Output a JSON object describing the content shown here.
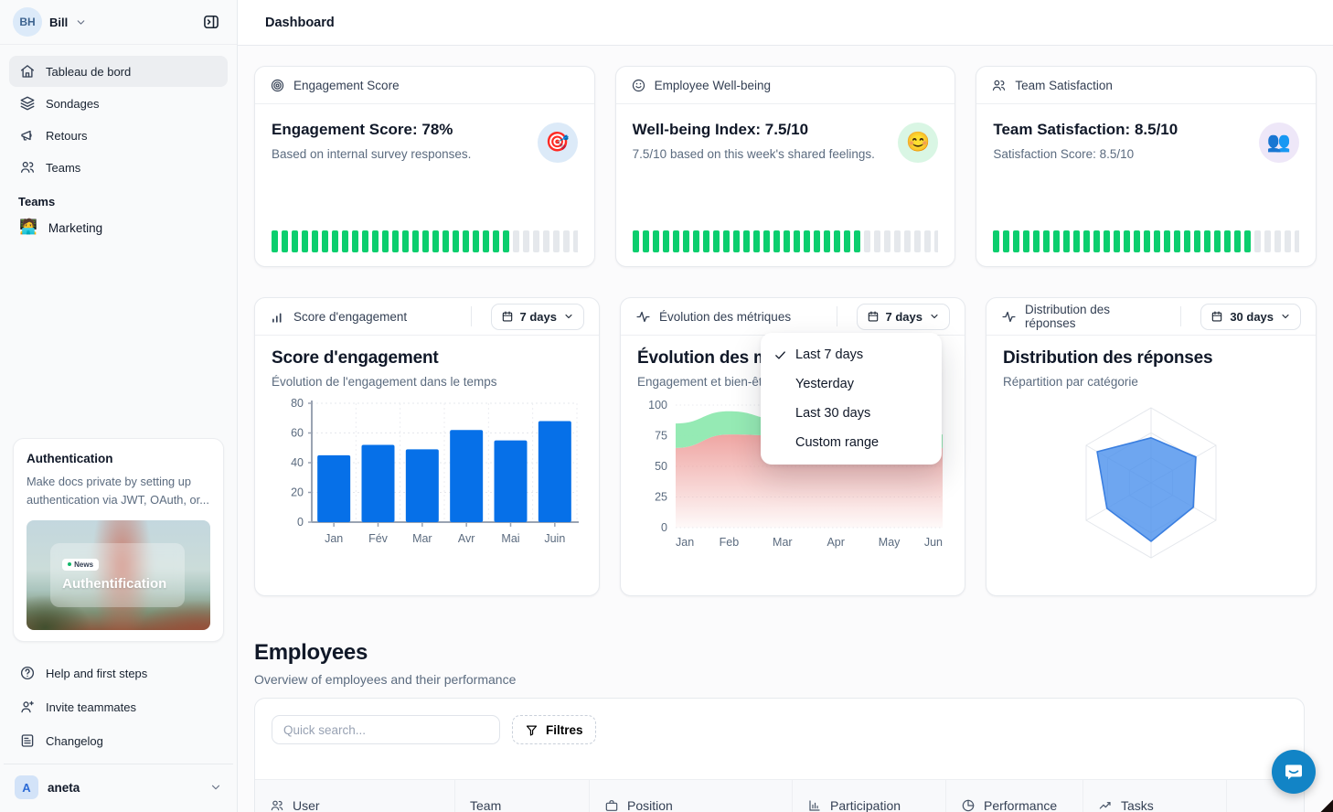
{
  "colors": {
    "accent_blue": "#0670E8",
    "progress_green": "#0BCE6E",
    "segment_gray": "#E5E8EC",
    "area_green": "#8FE9B0",
    "area_pink": "#EEA19E",
    "radar_fill": "#4A90EC",
    "radar_stroke": "#3B7FE0",
    "chat_blue": "#1284C6",
    "stat1_circle_bg": "#DCEAF8",
    "stat2_circle_bg": "#D9F6E4",
    "stat3_circle_bg": "#EEE7F8"
  },
  "topbar": {
    "title": "Dashboard"
  },
  "sidebar": {
    "user": {
      "initials": "BH",
      "name": "Bill"
    },
    "nav": [
      {
        "label": "Tableau de bord",
        "icon": "home",
        "active": true
      },
      {
        "label": "Sondages",
        "icon": "layers",
        "active": false
      },
      {
        "label": "Retours",
        "icon": "megaphone",
        "active": false
      },
      {
        "label": "Teams",
        "icon": "users",
        "active": false
      }
    ],
    "teams_section": {
      "label": "Teams",
      "items": [
        {
          "label": "Marketing",
          "emoji": "🧑‍💻"
        }
      ]
    },
    "promo_card": {
      "title": "Authentication",
      "body": "Make docs private by setting up authentication via JWT, OAuth, or...",
      "badge": "News",
      "image_caption": "Authentification"
    },
    "footer_nav": [
      {
        "label": "Help and first steps",
        "icon": "help-circle"
      },
      {
        "label": "Invite teammates",
        "icon": "user-plus"
      },
      {
        "label": "Changelog",
        "icon": "changelog"
      }
    ],
    "workspace": {
      "initial": "A",
      "name": "aneta"
    }
  },
  "stats": [
    {
      "header": "Engagement Score",
      "title": "Engagement Score: 78%",
      "subtitle": "Based on internal survey responses.",
      "emoji": "🎯",
      "progress": 0.78
    },
    {
      "header": "Employee Well-being",
      "title": "Well-being Index: 7.5/10",
      "subtitle": "7.5/10 based on this week's shared feelings.",
      "emoji": "😊",
      "progress": 0.75
    },
    {
      "header": "Team Satisfaction",
      "title": "Team Satisfaction: 8.5/10",
      "subtitle": "Satisfaction Score: 8.5/10",
      "emoji": "👥",
      "progress": 0.85
    }
  ],
  "chart_cards": [
    {
      "header": "Score d'engagement",
      "range_label": "7 days",
      "title": "Score d'engagement",
      "subtitle": "Évolution de l'engagement dans le temps"
    },
    {
      "header": "Évolution des métriques",
      "range_label": "7 days",
      "title": "Évolution des métriques",
      "subtitle": "Engagement et bien-être au fil du temps"
    },
    {
      "header": "Distribution des réponses",
      "range_label": "30 days",
      "title": "Distribution des réponses",
      "subtitle": "Répartition par catégorie"
    }
  ],
  "chart_data": [
    {
      "id": "engagement_bar",
      "type": "bar",
      "title": "Score d'engagement",
      "subtitle": "Évolution de l'engagement dans le temps",
      "categories": [
        "Jan",
        "Fév",
        "Mar",
        "Avr",
        "Mai",
        "Juin"
      ],
      "values": [
        45,
        52,
        49,
        62,
        55,
        68
      ],
      "ylim": [
        0,
        80
      ],
      "yticks": [
        0,
        20,
        40,
        60,
        80
      ],
      "grid": true,
      "color": "#0670E8"
    },
    {
      "id": "metrics_area",
      "type": "area",
      "title": "Évolution des métriques",
      "subtitle": "Engagement et bien-être au fil du temps",
      "x": [
        "Jan",
        "Feb",
        "Mar",
        "Apr",
        "May",
        "Jun"
      ],
      "series": [
        {
          "name": "engagement",
          "color": "#8FE9B0",
          "values": [
            85,
            95,
            88,
            62,
            66,
            76
          ]
        },
        {
          "name": "bien-etre",
          "color": "#EEA19E",
          "values": [
            65,
            76,
            75,
            58,
            60,
            65
          ]
        }
      ],
      "ylim": [
        0,
        100
      ],
      "yticks": [
        0,
        25,
        50,
        75,
        100
      ],
      "grid": true
    },
    {
      "id": "distribution_radar",
      "type": "radar",
      "title": "Distribution des réponses",
      "subtitle": "Répartition par catégorie",
      "axes": 6,
      "axis_labels": [],
      "values": [
        60,
        69,
        65,
        78,
        68,
        83
      ],
      "max": 100,
      "fill": "#4A90EC",
      "stroke": "#3B7FE0",
      "rings": 3
    }
  ],
  "period_menu": {
    "items": [
      {
        "label": "Last 7 days",
        "checked": true
      },
      {
        "label": "Yesterday",
        "checked": false
      },
      {
        "label": "Last 30 days",
        "checked": false
      },
      {
        "label": "Custom range",
        "checked": false
      }
    ]
  },
  "employees": {
    "title": "Employees",
    "subtitle": "Overview of employees and their performance",
    "search_placeholder": "Quick search...",
    "filter_label": "Filtres",
    "columns": [
      {
        "label": "User",
        "icon": "users"
      },
      {
        "label": "Team",
        "icon": null
      },
      {
        "label": "Position",
        "icon": "briefcase"
      },
      {
        "label": "Participation",
        "icon": "bar-chart"
      },
      {
        "label": "Performance",
        "icon": "pie-chart"
      },
      {
        "label": "Tasks",
        "icon": "trend-up"
      }
    ]
  }
}
